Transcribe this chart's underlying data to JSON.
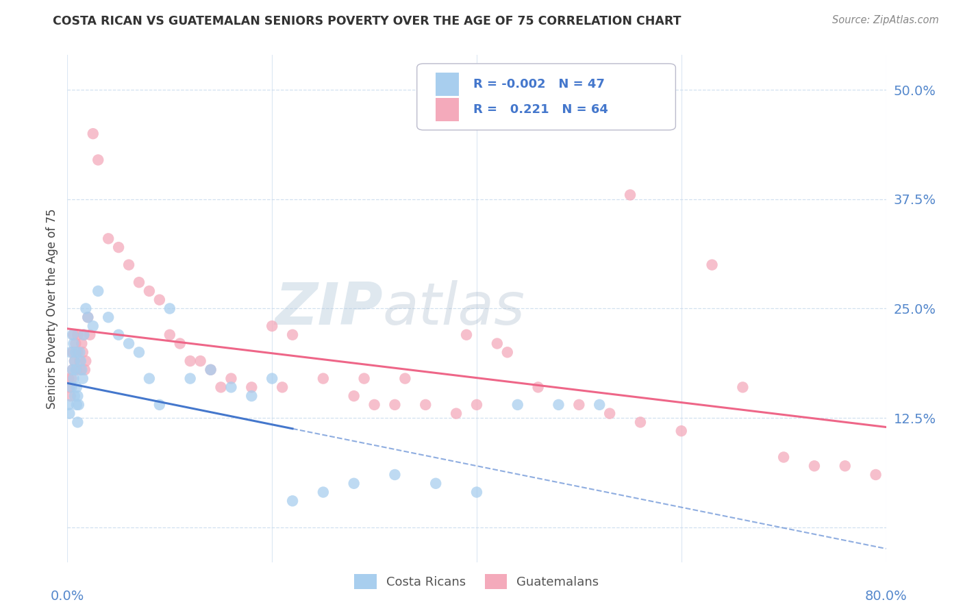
{
  "title": "COSTA RICAN VS GUATEMALAN SENIORS POVERTY OVER THE AGE OF 75 CORRELATION CHART",
  "source": "Source: ZipAtlas.com",
  "ylabel": "Seniors Poverty Over the Age of 75",
  "xlim": [
    0.0,
    0.8
  ],
  "ylim": [
    -0.04,
    0.54
  ],
  "yticks": [
    0.0,
    0.125,
    0.25,
    0.375,
    0.5
  ],
  "ytick_labels": [
    "",
    "12.5%",
    "25.0%",
    "37.5%",
    "50.0%"
  ],
  "xticks": [
    0.0,
    0.2,
    0.4,
    0.6,
    0.8
  ],
  "costa_rican_R": -0.002,
  "costa_rican_N": 47,
  "guatemalan_R": 0.221,
  "guatemalan_N": 64,
  "costa_rican_color": "#A8CEEE",
  "guatemalan_color": "#F4AABB",
  "regression_blue_color": "#4477CC",
  "regression_pink_color": "#EE6688",
  "background_color": "#FFFFFF",
  "grid_color": "#CCDDEE",
  "watermark_color": "#CCDDEEBB",
  "title_color": "#333333",
  "axis_label_color": "#5588CC",
  "legend_text_color": "#4477CC",
  "cr_x": [
    0.001,
    0.002,
    0.003,
    0.004,
    0.005,
    0.005,
    0.006,
    0.006,
    0.007,
    0.007,
    0.008,
    0.008,
    0.009,
    0.009,
    0.01,
    0.01,
    0.011,
    0.012,
    0.013,
    0.014,
    0.015,
    0.016,
    0.018,
    0.02,
    0.025,
    0.03,
    0.04,
    0.05,
    0.06,
    0.07,
    0.08,
    0.09,
    0.1,
    0.12,
    0.14,
    0.16,
    0.18,
    0.2,
    0.22,
    0.25,
    0.28,
    0.32,
    0.36,
    0.4,
    0.44,
    0.48,
    0.52
  ],
  "cr_y": [
    0.14,
    0.13,
    0.2,
    0.16,
    0.22,
    0.18,
    0.21,
    0.17,
    0.19,
    0.15,
    0.2,
    0.18,
    0.16,
    0.14,
    0.15,
    0.12,
    0.14,
    0.2,
    0.19,
    0.18,
    0.17,
    0.22,
    0.25,
    0.24,
    0.23,
    0.27,
    0.24,
    0.22,
    0.21,
    0.2,
    0.17,
    0.14,
    0.25,
    0.17,
    0.18,
    0.16,
    0.15,
    0.17,
    0.03,
    0.04,
    0.05,
    0.06,
    0.05,
    0.04,
    0.14,
    0.14,
    0.14
  ],
  "gt_x": [
    0.001,
    0.002,
    0.003,
    0.004,
    0.005,
    0.005,
    0.006,
    0.007,
    0.008,
    0.009,
    0.01,
    0.01,
    0.012,
    0.013,
    0.014,
    0.015,
    0.016,
    0.017,
    0.018,
    0.02,
    0.022,
    0.025,
    0.03,
    0.04,
    0.05,
    0.06,
    0.07,
    0.08,
    0.09,
    0.1,
    0.11,
    0.12,
    0.13,
    0.14,
    0.15,
    0.16,
    0.18,
    0.2,
    0.22,
    0.25,
    0.28,
    0.3,
    0.32,
    0.35,
    0.38,
    0.4,
    0.43,
    0.46,
    0.5,
    0.53,
    0.56,
    0.6,
    0.63,
    0.66,
    0.7,
    0.73,
    0.76,
    0.79,
    0.21,
    0.29,
    0.33,
    0.39,
    0.42,
    0.55
  ],
  "gt_y": [
    0.17,
    0.16,
    0.15,
    0.17,
    0.18,
    0.2,
    0.22,
    0.19,
    0.21,
    0.18,
    0.2,
    0.22,
    0.19,
    0.18,
    0.21,
    0.2,
    0.22,
    0.18,
    0.19,
    0.24,
    0.22,
    0.45,
    0.42,
    0.33,
    0.32,
    0.3,
    0.28,
    0.27,
    0.26,
    0.22,
    0.21,
    0.19,
    0.19,
    0.18,
    0.16,
    0.17,
    0.16,
    0.23,
    0.22,
    0.17,
    0.15,
    0.14,
    0.14,
    0.14,
    0.13,
    0.14,
    0.2,
    0.16,
    0.14,
    0.13,
    0.12,
    0.11,
    0.3,
    0.16,
    0.08,
    0.07,
    0.07,
    0.06,
    0.16,
    0.17,
    0.17,
    0.22,
    0.21,
    0.38
  ]
}
